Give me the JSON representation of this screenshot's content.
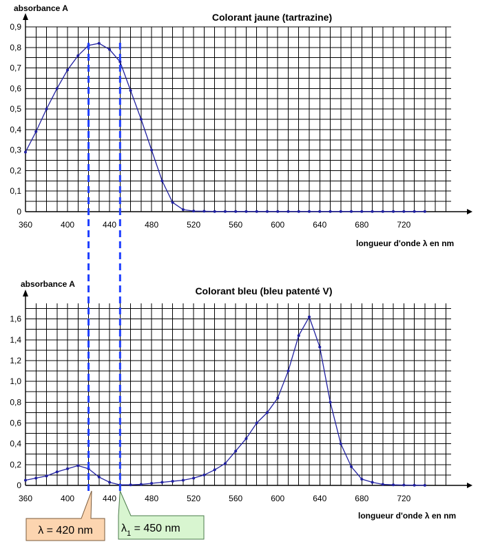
{
  "chart_data": [
    {
      "type": "line",
      "title": "Colorant jaune (tartrazine)",
      "ylabel": "absorbance A",
      "xlabel": "longueur d'onde λ en nm",
      "x_ticks": [
        "360",
        "400",
        "440",
        "480",
        "520",
        "560",
        "600",
        "640",
        "680",
        "720"
      ],
      "y_ticks": [
        "0",
        "0,1",
        "0,2",
        "0,3",
        "0,4",
        "0,5",
        "0,6",
        "0,7",
        "0,8",
        "0,9"
      ],
      "xlim": [
        360,
        765
      ],
      "ylim": [
        0,
        0.9
      ],
      "grid": true,
      "series": [
        {
          "x": [
            360,
            370,
            380,
            390,
            400,
            410,
            420,
            430,
            440,
            450,
            460,
            470,
            480,
            490,
            500,
            510,
            520,
            530,
            540,
            550,
            560,
            570,
            580,
            590,
            600,
            610,
            620,
            630,
            640,
            650,
            660,
            670,
            680,
            690,
            700,
            710,
            720,
            730,
            740
          ],
          "y": [
            0.29,
            0.39,
            0.5,
            0.6,
            0.69,
            0.76,
            0.81,
            0.82,
            0.79,
            0.73,
            0.59,
            0.45,
            0.3,
            0.15,
            0.045,
            0.01,
            0.003,
            0.002,
            0.001,
            0.001,
            0.001,
            0.001,
            0.001,
            0.001,
            0.001,
            0.001,
            0.001,
            0.001,
            0.001,
            0.001,
            0.001,
            0.001,
            0.001,
            0.001,
            0.001,
            0.001,
            0.001,
            0.001,
            0.001
          ]
        }
      ]
    },
    {
      "type": "line",
      "title": "Colorant bleu (bleu patenté V)",
      "ylabel": "absorbance A",
      "xlabel": "longueur d'onde λ en nm",
      "x_ticks": [
        "360",
        "400",
        "440",
        "480",
        "520",
        "560",
        "600",
        "640",
        "680",
        "720"
      ],
      "y_ticks": [
        "0",
        "0,2",
        "0,4",
        "0,6",
        "0,8",
        "1,0",
        "1,2",
        "1,4",
        "1,6"
      ],
      "xlim": [
        360,
        765
      ],
      "ylim": [
        0,
        1.75
      ],
      "grid": true,
      "series": [
        {
          "x": [
            360,
            370,
            380,
            390,
            400,
            410,
            420,
            430,
            440,
            450,
            460,
            470,
            480,
            490,
            500,
            510,
            520,
            530,
            540,
            550,
            560,
            570,
            580,
            590,
            600,
            610,
            620,
            630,
            640,
            650,
            660,
            670,
            680,
            690,
            700,
            710,
            720,
            730,
            740
          ],
          "y": [
            0.05,
            0.07,
            0.09,
            0.13,
            0.16,
            0.19,
            0.16,
            0.08,
            0.03,
            0.005,
            0.005,
            0.01,
            0.02,
            0.03,
            0.04,
            0.05,
            0.07,
            0.1,
            0.15,
            0.21,
            0.33,
            0.45,
            0.6,
            0.7,
            0.84,
            1.1,
            1.44,
            1.62,
            1.33,
            0.8,
            0.4,
            0.18,
            0.06,
            0.03,
            0.01,
            0.005,
            0.003,
            0.002,
            0.001
          ]
        }
      ]
    }
  ],
  "annotations": {
    "lambda_420": "λ = 420 nm",
    "lambda_450_symbol": "λ",
    "lambda_450_sub": "1",
    "lambda_450_rest": " = 450 nm",
    "line_x": [
      420,
      450
    ]
  },
  "colors": {
    "curve": "#1f1f9f",
    "dashed_lines": "#1f3fff",
    "callout_orange": "#fcd5b0",
    "callout_green": "#d8f5d0"
  }
}
